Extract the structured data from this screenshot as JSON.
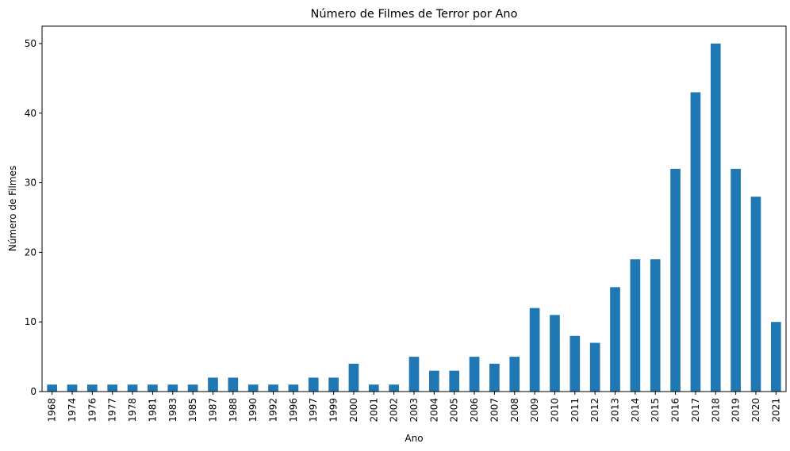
{
  "chart_data": {
    "type": "bar",
    "title": "Número de Filmes de Terror por Ano",
    "xlabel": "Ano",
    "ylabel": "Número de Filmes",
    "categories": [
      "1968",
      "1974",
      "1976",
      "1977",
      "1978",
      "1981",
      "1983",
      "1985",
      "1987",
      "1988",
      "1990",
      "1992",
      "1996",
      "1997",
      "1999",
      "2000",
      "2001",
      "2002",
      "2003",
      "2004",
      "2005",
      "2006",
      "2007",
      "2008",
      "2009",
      "2010",
      "2011",
      "2012",
      "2013",
      "2014",
      "2015",
      "2016",
      "2017",
      "2018",
      "2019",
      "2020",
      "2021"
    ],
    "values": [
      1,
      1,
      1,
      1,
      1,
      1,
      1,
      1,
      2,
      2,
      1,
      1,
      1,
      2,
      2,
      4,
      1,
      1,
      5,
      3,
      3,
      5,
      4,
      5,
      12,
      11,
      8,
      7,
      15,
      19,
      19,
      32,
      43,
      50,
      32,
      28,
      10
    ],
    "ylim": [
      0,
      52.5
    ],
    "yticks": [
      0,
      10,
      20,
      30,
      40,
      50
    ],
    "bar_color": "#1f77b4",
    "grid": false,
    "legend": "none"
  }
}
